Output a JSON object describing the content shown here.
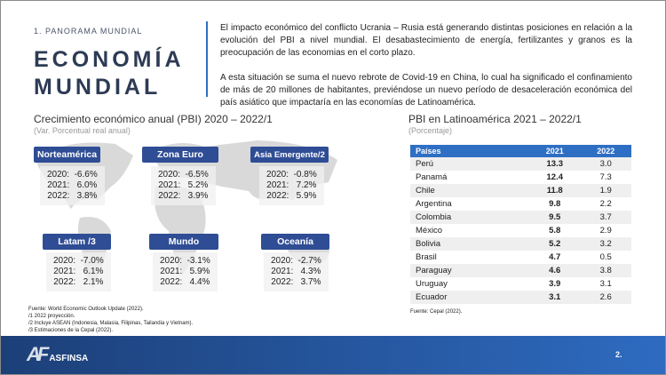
{
  "header": {
    "section": "1. PANORAMA MUNDIAL",
    "title_line1": "ECONOMÍA",
    "title_line2": "MUNDIAL",
    "paragraph1": "El impacto económico del conflicto Ucrania – Rusia está generando distintas posiciones en relación a la evolución del PBI a nivel mundial. El desabastecimiento de energía, fertilizantes y granos es la preocupación de las economias en el corto plazo.",
    "paragraph2": "A esta situación se suma el nuevo rebrote de Covid-19 en China, lo cual ha significado el confinamiento de más de 20 millones de habitantes, previéndose un nuevo período de desaceleración económica del país asiático que impactaría en las economías de Latinoamérica."
  },
  "growth": {
    "title": "Crecimiento económico anual (PBI) 2020 – 2022/1",
    "subtitle": "(Var. Porcentual real anual)",
    "regions": [
      {
        "name": "Norteamérica",
        "values": "2020:  -6.6%\n2021:   6.0%\n2022:   3.8%"
      },
      {
        "name": "Zona Euro",
        "values": "2020:  -6.5%\n2021:   5.2%\n2022:   3.9%"
      },
      {
        "name": "Asia Emergente/2",
        "values": "2020:  -0.8%\n2021:   7.2%\n2022:   5.9%"
      },
      {
        "name": "Latam /3",
        "values": "2020:  -7.0%\n2021:   6.1%\n2022:   2.1%"
      },
      {
        "name": "Mundo",
        "values": "2020:  -3.1%\n2021:   5.9%\n2022:   4.4%"
      },
      {
        "name": "Oceanía",
        "values": "2020:  -2.7%\n2021:   4.3%\n2022:   3.7%"
      }
    ],
    "footnotes": [
      "Fuente: World Economic Outlook Update (2022).",
      "/1 2022 proyección.",
      "/2 Incluye ASEAN (Indonesia, Malasia, Filipinas, Tailandia y Vietnam).",
      "/3 Estimaciones de la Cepal (2022)."
    ]
  },
  "latam": {
    "title": "PBI en Latinoamérica 2021 – 2022/1",
    "subtitle": "(Porcentaje)",
    "columns": [
      "Países",
      "2021",
      "2022"
    ],
    "rows": [
      [
        "Perú",
        "13.3",
        "3.0"
      ],
      [
        "Panamá",
        "12.4",
        "7.3"
      ],
      [
        "Chile",
        "11.8",
        "1.9"
      ],
      [
        "Argentina",
        "9.8",
        "2.2"
      ],
      [
        "Colombia",
        "9.5",
        "3.7"
      ],
      [
        "México",
        "5.8",
        "2.9"
      ],
      [
        "Bolivia",
        "5.2",
        "3.2"
      ],
      [
        "Brasil",
        "4.7",
        "0.5"
      ],
      [
        "Paraguay",
        "4.6",
        "3.8"
      ],
      [
        "Uruguay",
        "3.9",
        "3.1"
      ],
      [
        "Ecuador",
        "3.1",
        "2.6"
      ]
    ],
    "source": "Fuente: Cepal (2022)."
  },
  "footer": {
    "logo_mark": "AF",
    "logo_name": "ASFINSA",
    "page": "2."
  },
  "colors": {
    "accent": "#2e6fc4",
    "region_header": "#2f4d95",
    "title": "#2d3b55"
  }
}
